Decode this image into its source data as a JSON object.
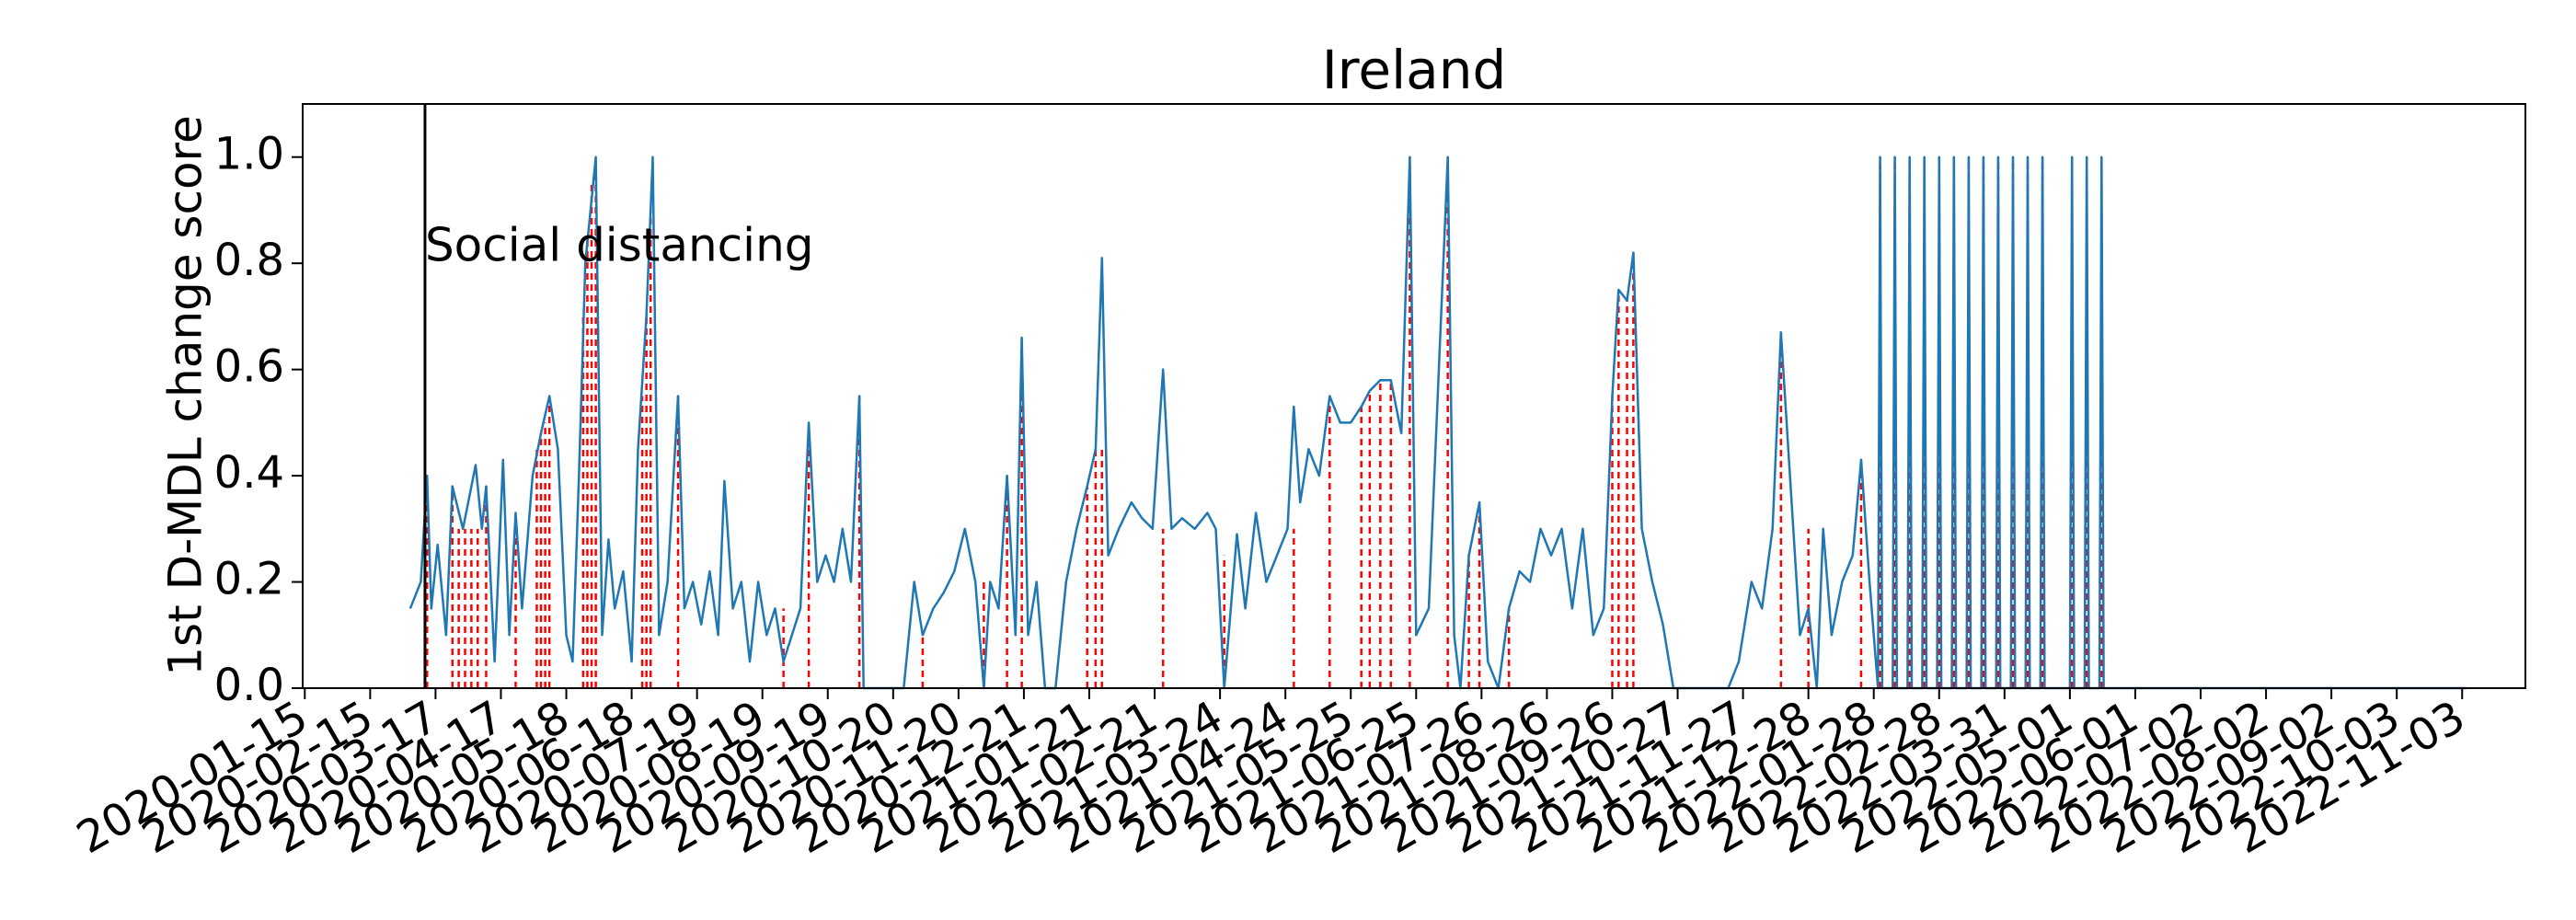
{
  "chart_data": {
    "type": "line",
    "title": "Ireland",
    "y_label": "1st D-MDL change score",
    "xlim": [
      "2020-01-14",
      "2022-12-03"
    ],
    "xticks": [
      "2020-01-15",
      "2020-02-15",
      "2020-03-17",
      "2020-04-17",
      "2020-05-18",
      "2020-06-18",
      "2020-07-19",
      "2020-08-19",
      "2020-09-19",
      "2020-10-20",
      "2020-11-20",
      "2020-12-21",
      "2021-01-21",
      "2021-02-21",
      "2021-03-24",
      "2021-04-24",
      "2021-05-25",
      "2021-06-25",
      "2021-07-26",
      "2021-08-26",
      "2021-09-26",
      "2021-10-27",
      "2021-11-27",
      "2021-12-28",
      "2022-01-28",
      "2022-02-28",
      "2022-03-31",
      "2022-05-01",
      "2022-06-01",
      "2022-07-02",
      "2022-08-02",
      "2022-09-02",
      "2022-10-03",
      "2022-11-03"
    ],
    "ylim": [
      0,
      1.1
    ],
    "yticks": [
      {
        "value": 0,
        "label": "0.0"
      },
      0.2,
      0.4,
      0.6,
      0.8,
      {
        "value": 1,
        "label": "1.0"
      }
    ],
    "annotation": {
      "text": "Social distancing",
      "x": "2020-03-12",
      "color": "#000000"
    },
    "series": [
      {
        "color": "#1f77b4",
        "x": [
          "2020-03-05",
          "2020-03-10",
          "2020-03-13",
          "2020-03-15",
          "2020-03-18",
          "2020-03-22",
          "2020-03-25",
          "2020-03-30",
          "2020-04-05",
          "2020-04-08",
          "2020-04-10",
          "2020-04-14",
          "2020-04-18",
          "2020-04-21",
          "2020-04-24",
          "2020-04-27",
          "2020-05-02",
          "2020-05-06",
          "2020-05-10",
          "2020-05-14",
          "2020-05-18",
          "2020-05-21",
          "2020-05-24",
          "2020-05-27",
          "2020-06-01",
          "2020-06-04",
          "2020-06-07",
          "2020-06-10",
          "2020-06-14",
          "2020-06-18",
          "2020-06-21",
          "2020-06-25",
          "2020-06-28",
          "2020-07-01",
          "2020-07-05",
          "2020-07-10",
          "2020-07-13",
          "2020-07-17",
          "2020-07-21",
          "2020-07-25",
          "2020-07-29",
          "2020-08-01",
          "2020-08-05",
          "2020-08-09",
          "2020-08-13",
          "2020-08-17",
          "2020-08-21",
          "2020-08-25",
          "2020-08-29",
          "2020-09-02",
          "2020-09-06",
          "2020-09-10",
          "2020-09-14",
          "2020-09-18",
          "2020-09-22",
          "2020-09-26",
          "2020-09-30",
          "2020-10-04",
          "2020-10-06",
          "2020-10-25",
          "2020-10-30",
          "2020-11-03",
          "2020-11-08",
          "2020-11-13",
          "2020-11-18",
          "2020-11-23",
          "2020-11-28",
          "2020-12-02",
          "2020-12-05",
          "2020-12-09",
          "2020-12-13",
          "2020-12-17",
          "2020-12-20",
          "2020-12-23",
          "2020-12-27",
          "2020-12-31",
          "2021-01-05",
          "2021-01-10",
          "2021-01-15",
          "2021-01-20",
          "2021-01-24",
          "2021-01-27",
          "2021-01-30",
          "2021-02-04",
          "2021-02-10",
          "2021-02-15",
          "2021-02-20",
          "2021-02-25",
          "2021-03-01",
          "2021-03-06",
          "2021-03-12",
          "2021-03-18",
          "2021-03-22",
          "2021-03-26",
          "2021-04-01",
          "2021-04-05",
          "2021-04-10",
          "2021-04-15",
          "2021-04-20",
          "2021-04-25",
          "2021-04-28",
          "2021-05-01",
          "2021-05-05",
          "2021-05-10",
          "2021-05-15",
          "2021-05-20",
          "2021-05-25",
          "2021-05-30",
          "2021-06-03",
          "2021-06-08",
          "2021-06-13",
          "2021-06-18",
          "2021-06-22",
          "2021-06-25",
          "2021-07-01",
          "2021-07-10",
          "2021-07-13",
          "2021-07-16",
          "2021-07-20",
          "2021-07-25",
          "2021-07-29",
          "2021-08-03",
          "2021-08-08",
          "2021-08-13",
          "2021-08-18",
          "2021-08-23",
          "2021-08-28",
          "2021-09-02",
          "2021-09-07",
          "2021-09-12",
          "2021-09-17",
          "2021-09-22",
          "2021-09-26",
          "2021-09-29",
          "2021-10-03",
          "2021-10-06",
          "2021-10-10",
          "2021-10-15",
          "2021-10-20",
          "2021-10-25",
          "2021-11-20",
          "2021-11-25",
          "2021-12-01",
          "2021-12-06",
          "2021-12-11",
          "2021-12-15",
          "2021-12-24",
          "2021-12-28",
          "2022-01-01",
          "2022-01-04",
          "2022-01-08",
          "2022-01-13",
          "2022-01-18",
          "2022-01-22",
          "2022-01-26",
          "2022-01-30",
          "2022-01-31",
          "2022-02-01",
          "2022-02-06",
          "2022-02-07",
          "2022-02-08",
          "2022-02-13",
          "2022-02-14",
          "2022-02-15",
          "2022-02-20",
          "2022-02-21",
          "2022-02-22",
          "2022-02-27",
          "2022-02-28",
          "2022-03-01",
          "2022-03-06",
          "2022-03-07",
          "2022-03-08",
          "2022-03-13",
          "2022-03-14",
          "2022-03-15",
          "2022-03-20",
          "2022-03-21",
          "2022-03-22",
          "2022-03-27",
          "2022-03-28",
          "2022-03-29",
          "2022-04-03",
          "2022-04-04",
          "2022-04-05",
          "2022-04-10",
          "2022-04-11",
          "2022-04-12",
          "2022-04-17",
          "2022-04-18",
          "2022-04-19",
          "2022-05-01",
          "2022-05-02",
          "2022-05-03",
          "2022-05-08",
          "2022-05-09",
          "2022-05-10",
          "2022-05-15",
          "2022-05-16",
          "2022-05-17",
          "2022-11-05"
        ],
        "values": [
          0.15,
          0.2,
          0.4,
          0.15,
          0.27,
          0.1,
          0.38,
          0.3,
          0.42,
          0.3,
          0.38,
          0.05,
          0.43,
          0.1,
          0.33,
          0.15,
          0.4,
          0.48,
          0.55,
          0.45,
          0.1,
          0.05,
          0.4,
          0.8,
          1.0,
          0.1,
          0.28,
          0.15,
          0.22,
          0.05,
          0.45,
          0.7,
          1.0,
          0.1,
          0.2,
          0.55,
          0.15,
          0.2,
          0.12,
          0.22,
          0.1,
          0.39,
          0.15,
          0.2,
          0.05,
          0.2,
          0.1,
          0.15,
          0.05,
          0.1,
          0.15,
          0.5,
          0.2,
          0.25,
          0.2,
          0.3,
          0.2,
          0.55,
          0.0,
          0.0,
          0.2,
          0.1,
          0.15,
          0.18,
          0.22,
          0.3,
          0.2,
          0.0,
          0.2,
          0.15,
          0.4,
          0.1,
          0.66,
          0.1,
          0.2,
          0.0,
          0.0,
          0.2,
          0.3,
          0.38,
          0.45,
          0.81,
          0.25,
          0.3,
          0.35,
          0.32,
          0.3,
          0.6,
          0.3,
          0.32,
          0.3,
          0.33,
          0.3,
          0.0,
          0.29,
          0.15,
          0.33,
          0.2,
          0.25,
          0.3,
          0.53,
          0.35,
          0.45,
          0.4,
          0.55,
          0.5,
          0.5,
          0.53,
          0.56,
          0.58,
          0.58,
          0.48,
          1.0,
          0.1,
          0.15,
          1.0,
          0.1,
          0.0,
          0.25,
          0.35,
          0.05,
          0.0,
          0.15,
          0.22,
          0.2,
          0.3,
          0.25,
          0.3,
          0.15,
          0.3,
          0.1,
          0.15,
          0.55,
          0.75,
          0.73,
          0.82,
          0.3,
          0.2,
          0.12,
          0.0,
          0.0,
          0.05,
          0.2,
          0.15,
          0.3,
          0.67,
          0.1,
          0.15,
          0.0,
          0.3,
          0.1,
          0.2,
          0.25,
          0.43,
          0.2,
          0,
          1,
          0,
          0,
          1,
          0,
          0,
          1,
          0,
          0,
          1,
          0,
          0,
          1,
          0,
          0,
          1,
          0,
          0,
          1,
          0,
          0,
          1,
          0,
          0,
          1,
          0,
          0,
          1,
          0,
          0,
          1,
          0,
          0,
          1,
          0,
          0,
          1,
          0,
          0,
          1,
          0,
          0,
          1,
          0,
          0
        ]
      }
    ],
    "changes": {
      "color": "#ff0000",
      "x": [
        "2020-03-13",
        "2020-03-25",
        "2020-03-28",
        "2020-03-31",
        "2020-04-03",
        "2020-04-06",
        "2020-04-10",
        "2020-04-24",
        "2020-05-04",
        "2020-05-06",
        "2020-05-08",
        "2020-05-10",
        "2020-05-26",
        "2020-05-28",
        "2020-05-30",
        "2020-06-01",
        "2020-06-23",
        "2020-06-25",
        "2020-06-27",
        "2020-07-10",
        "2020-08-29",
        "2020-09-10",
        "2020-10-04",
        "2020-11-03",
        "2020-12-02",
        "2020-12-13",
        "2020-12-20",
        "2021-01-20",
        "2021-01-24",
        "2021-01-27",
        "2021-02-25",
        "2021-03-26",
        "2021-04-28",
        "2021-05-15",
        "2021-05-30",
        "2021-06-03",
        "2021-06-08",
        "2021-06-13",
        "2021-06-22",
        "2021-07-10",
        "2021-07-20",
        "2021-07-25",
        "2021-08-08",
        "2021-09-26",
        "2021-09-29",
        "2021-10-03",
        "2021-10-06",
        "2021-12-15",
        "2021-12-28",
        "2022-01-22",
        "2022-01-31",
        "2022-02-07",
        "2022-02-14",
        "2022-02-21",
        "2022-02-28",
        "2022-03-07",
        "2022-03-14",
        "2022-03-21",
        "2022-03-28",
        "2022-04-04",
        "2022-04-11",
        "2022-04-18",
        "2022-05-02",
        "2022-05-09",
        "2022-05-16"
      ],
      "values": [
        0.4,
        0.38,
        0.3,
        0.3,
        0.3,
        0.3,
        0.38,
        0.33,
        0.45,
        0.48,
        0.5,
        0.55,
        0.7,
        0.85,
        0.95,
        1.0,
        0.55,
        0.7,
        0.9,
        0.55,
        0.15,
        0.5,
        0.55,
        0.1,
        0.2,
        0.4,
        0.66,
        0.38,
        0.45,
        0.45,
        0.3,
        0.25,
        0.3,
        0.55,
        0.53,
        0.56,
        0.58,
        0.58,
        1.0,
        1.0,
        0.25,
        0.35,
        0.15,
        0.55,
        0.75,
        0.73,
        0.82,
        0.67,
        0.3,
        0.43,
        1,
        1,
        1,
        1,
        1,
        1,
        1,
        1,
        1,
        1,
        1,
        1,
        1,
        1,
        1
      ]
    }
  }
}
